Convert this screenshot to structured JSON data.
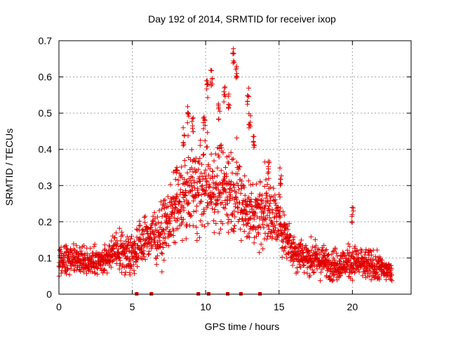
{
  "chart_data": {
    "type": "scatter",
    "title": "Day 192 of 2014, SRMTID for receiver ixop",
    "xlabel": "GPS time / hours",
    "ylabel": "SRMTID / TECUs",
    "xlim": [
      0,
      24
    ],
    "ylim": [
      0,
      0.7
    ],
    "xticks": [
      0,
      5,
      10,
      15,
      20
    ],
    "yticks": [
      0,
      0.1,
      0.2,
      0.3,
      0.4,
      0.5,
      0.6,
      0.7
    ],
    "xtick_labels": [
      "0",
      "5",
      "10",
      "15",
      "20"
    ],
    "ytick_labels": [
      "0",
      "0.1",
      "0.2",
      "0.3",
      "0.4",
      "0.5",
      "0.6",
      "0.7"
    ],
    "grid": true,
    "marker": "+",
    "color": "#e00000",
    "series": [
      {
        "name": "SRMTID",
        "profile_hours": [
          0,
          1,
          2,
          3,
          4,
          5,
          6,
          7,
          8,
          9,
          10,
          11,
          12,
          13,
          14,
          15,
          16,
          17,
          18,
          19,
          20,
          21,
          22,
          22.7
        ],
        "profile_mean": [
          0.09,
          0.1,
          0.09,
          0.09,
          0.12,
          0.11,
          0.16,
          0.17,
          0.24,
          0.29,
          0.3,
          0.3,
          0.29,
          0.22,
          0.24,
          0.2,
          0.12,
          0.1,
          0.09,
          0.08,
          0.09,
          0.08,
          0.07,
          0.06
        ],
        "profile_spread": [
          0.025,
          0.025,
          0.025,
          0.025,
          0.035,
          0.035,
          0.045,
          0.05,
          0.06,
          0.08,
          0.08,
          0.08,
          0.08,
          0.06,
          0.07,
          0.05,
          0.035,
          0.03,
          0.03,
          0.03,
          0.03,
          0.03,
          0.025,
          0.025
        ],
        "peaks": [
          {
            "x": 8.0,
            "y": 0.36
          },
          {
            "x": 8.5,
            "y": 0.46
          },
          {
            "x": 8.8,
            "y": 0.52
          },
          {
            "x": 9.1,
            "y": 0.49
          },
          {
            "x": 9.9,
            "y": 0.5
          },
          {
            "x": 10.1,
            "y": 0.59
          },
          {
            "x": 10.4,
            "y": 0.62
          },
          {
            "x": 10.9,
            "y": 0.53
          },
          {
            "x": 11.3,
            "y": 0.58
          },
          {
            "x": 11.6,
            "y": 0.56
          },
          {
            "x": 11.9,
            "y": 0.68
          },
          {
            "x": 12.1,
            "y": 0.64
          },
          {
            "x": 12.9,
            "y": 0.57
          },
          {
            "x": 13.0,
            "y": 0.5
          },
          {
            "x": 13.3,
            "y": 0.45
          },
          {
            "x": 14.3,
            "y": 0.37
          },
          {
            "x": 15.1,
            "y": 0.35
          },
          {
            "x": 20.0,
            "y": 0.245
          }
        ],
        "zero_points_x": [
          5.3,
          6.3,
          9.5,
          10.2,
          11.5,
          12.4,
          13.7
        ]
      }
    ]
  }
}
